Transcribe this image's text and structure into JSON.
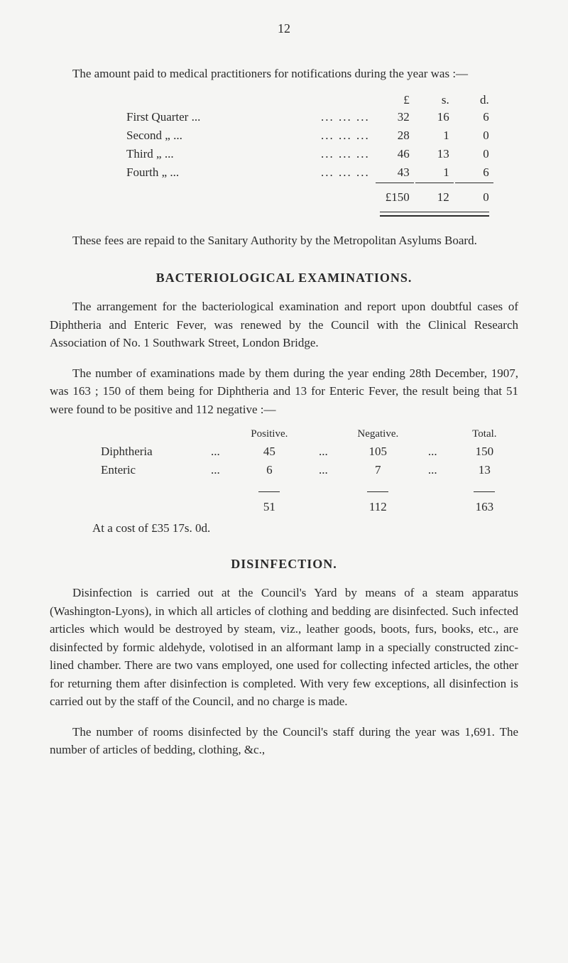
{
  "page_number": "12",
  "intro_para": "The amount paid to medical practitioners for notifications during the year was :—",
  "currency_headers": {
    "pound": "£",
    "shilling": "s.",
    "pence": "d."
  },
  "quarters": [
    {
      "label": "First Quarter ...",
      "dots": "...        ...        ...",
      "p": "32",
      "s": "16",
      "d": "6"
    },
    {
      "label": "Second     „     ...",
      "dots": "...        ...        ...",
      "p": "28",
      "s": "1",
      "d": "0"
    },
    {
      "label": "Third       „     ...",
      "dots": "...        ...        ...",
      "p": "46",
      "s": "13",
      "d": "0"
    },
    {
      "label": "Fourth     „     ...",
      "dots": "...        ...        ...",
      "p": "43",
      "s": "1",
      "d": "6"
    }
  ],
  "quarters_total": {
    "p": "£150",
    "s": "12",
    "d": "0"
  },
  "fees_para": "These fees are repaid to the Sanitary Authority by the Metropolitan Asylums Board.",
  "bact_heading": "BACTERIOLOGICAL  EXAMINATIONS.",
  "bact_para1": "The arrangement for the bacteriological examination and report upon doubtful cases of Diphtheria and Enteric Fever, was renewed by the Council with the Clinical Research Association of No. 1 Southwark Street, London Bridge.",
  "bact_para2": "The number of examinations made by them during the year ending 28th December, 1907, was 163 ; 150 of them being for Diphtheria and 13 for Enteric Fever, the result being that 51 were found to be positive and 112 negative :—",
  "exam_headers": {
    "positive": "Positive.",
    "negative": "Negative.",
    "total": "Total."
  },
  "exam_rows": [
    {
      "label": "Diphtheria",
      "dots": "...",
      "positive": "45",
      "negative": "105",
      "total": "150"
    },
    {
      "label": "Enteric",
      "dots": "...",
      "positive": "6",
      "negative": "7",
      "total": "13"
    }
  ],
  "exam_totals": {
    "positive": "51",
    "negative": "112",
    "total": "163"
  },
  "cost_line": "At a cost of £35 17s. 0d.",
  "disinf_heading": "DISINFECTION.",
  "disinf_para1": "Disinfection is carried out at the Council's Yard by means of a steam apparatus (Washington-Lyons), in which all articles of clothing and bedding are disinfected. Such infected articles which would be destroyed by steam, viz., leather goods, boots, furs, books, etc., are disinfected by formic aldehyde, volotised in an alformant lamp in a specially constructed zinc-lined chamber. There are two vans employed, one used for collecting infected articles, the other for returning them after disinfection is completed. With very few exceptions, all disinfection is carried out by the staff of the Council, and no charge is made.",
  "disinf_para2": "The number of rooms disinfected by the Council's staff during the year was 1,691. The number of articles of bedding, clothing, &c.,"
}
